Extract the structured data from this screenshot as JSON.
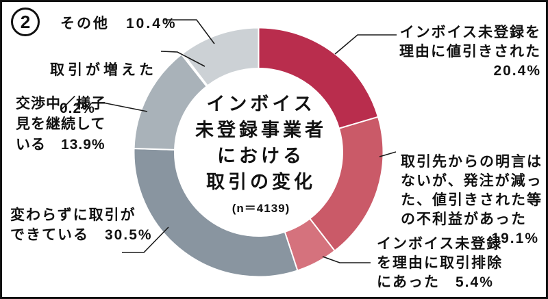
{
  "figure_number": "2",
  "chart_data": {
    "type": "pie",
    "subtype": "donut",
    "title_lines": [
      "インボイス",
      "未登録事業者",
      "における",
      "取引の変化"
    ],
    "title": "インボイス未登録事業者における取引の変化",
    "sample_size_label": "(n＝4139)",
    "unit": "%",
    "start_angle_deg": 0,
    "direction": "clockwise",
    "segments": [
      {
        "label": "インボイス未登録を理由に値引きされた",
        "value": 20.4,
        "color": "#b92d4d"
      },
      {
        "label": "取引先からの明言はないが、発注が減った、値引きされた等の不利益があった",
        "value": 19.1,
        "color": "#ca5a68"
      },
      {
        "label": "インボイス未登録を理由に取引排除にあった",
        "value": 5.4,
        "color": "#d5727d"
      },
      {
        "label": "変わらずに取引ができている",
        "value": 30.5,
        "color": "#8995a0"
      },
      {
        "label": "交渉中／様子見を継続している",
        "value": 13.9,
        "color": "#a9b2b9"
      },
      {
        "label": "取引が増えた",
        "value": 0.2,
        "color": "#c6ccd1"
      },
      {
        "label": "その他",
        "value": 10.4,
        "color": "#ccd1d5"
      }
    ]
  },
  "callouts": {
    "other": "その他　10.4%",
    "increased_line1": "取引が増えた",
    "increased_line2": "0.2%",
    "negotiating": "交渉中／様子\n見を継続して\nいる　13.9%",
    "unchanged": "変わらずに取引が\nできている　30.5%",
    "discounted": "インボイス未登録を\n理由に値引きされた\n20.4%",
    "disadvantage_text": "取引先からの明言は\nないが、発注が減っ\nた、値引きされた等\nの不利益があった",
    "disadvantage_pct": "19.1%",
    "excluded": "インボイス未登録\nを理由に取引排除\nにあった　5.4%"
  }
}
